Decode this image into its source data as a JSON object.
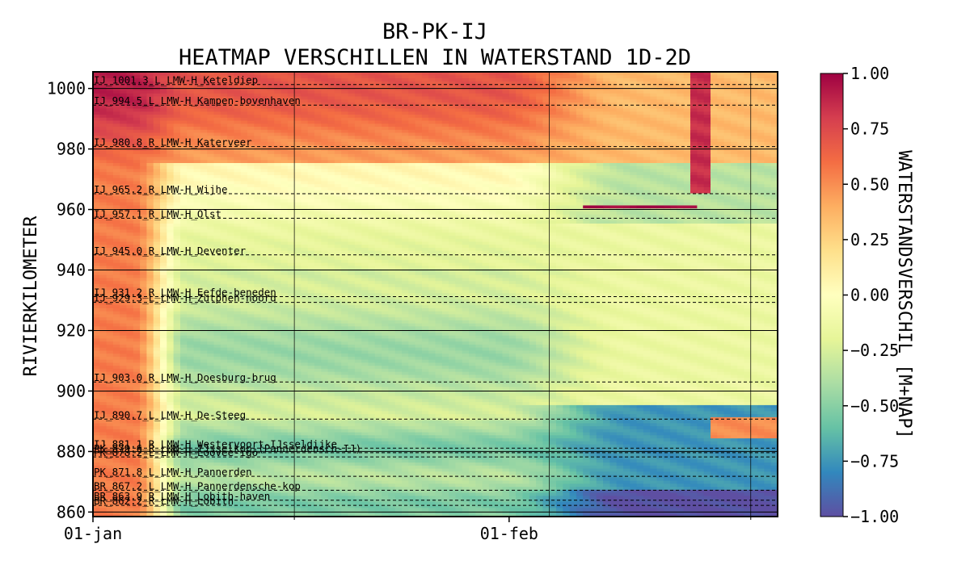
{
  "chart_data": {
    "type": "heatmap",
    "title_lines": [
      "BR-PK-IJ",
      "HEATMAP VERSCHILLEN IN WATERSTAND 1D-2D"
    ],
    "ylabel": "RIVIERKILOMETER",
    "colorbar_label": "WATERSTANDSVERSCHIL [M+NAP]",
    "x_ticks": [
      "01-jan",
      "01-feb"
    ],
    "xlim_days": [
      0,
      51
    ],
    "y_ticks": [
      860,
      880,
      900,
      920,
      940,
      960,
      980,
      1000
    ],
    "ylim": [
      858.5,
      1005.5
    ],
    "colorbar_range": [
      -1.0,
      1.0
    ],
    "colorbar_ticks": [
      "1.00",
      "0.75",
      "0.50",
      "0.25",
      "0.00",
      "−0.25",
      "−0.50",
      "−0.75",
      "−1.00"
    ],
    "colormap": "Spectral_r",
    "grid": true,
    "stations": [
      {
        "km": 1001.3,
        "label": "IJ_1001.3_L_LMW-H_Keteldiep"
      },
      {
        "km": 994.5,
        "label": "IJ_994.5_L_LMW-H_Kampen-bovenhaven"
      },
      {
        "km": 980.8,
        "label": "IJ_980.8_R_LMW-H_Katerveer"
      },
      {
        "km": 965.2,
        "label": "IJ_965.2_R_LMW-H_Wijhe"
      },
      {
        "km": 957.1,
        "label": "IJ_957.1_R_LMW-H_Olst"
      },
      {
        "km": 945.0,
        "label": "IJ_945.0_R_LMW-H_Deventer"
      },
      {
        "km": 931.2,
        "label": "IJ_931.2_R_LMW-H_Eefde-beneden"
      },
      {
        "km": 929.3,
        "label": "IJ_929.3_L_LMW-H_Zutphen-noord"
      },
      {
        "km": 903.0,
        "label": "IJ_903.0_R_LMW-H_Doesburg-brug"
      },
      {
        "km": 890.7,
        "label": "IJ_890.7_L_LMW-H_De-Steeg"
      },
      {
        "km": 881.1,
        "label": "IJ_881.1_R_LMW-H_Westervoort-IJsseldijke"
      },
      {
        "km": 879.6,
        "label": "PK_879.6_R_LMW-H_IJsselkop-(Pannerdensch-IJ)"
      },
      {
        "km": 878.2,
        "label": "PK_878.2_L_LMW-H_Loovee-igo"
      },
      {
        "km": 871.8,
        "label": "PK_871.8_L_LMW-H_Pannerden"
      },
      {
        "km": 867.2,
        "label": "BR_867.2_L_LMW-H_Pannerdensche-kop"
      },
      {
        "km": 863.9,
        "label": "BR_863.9_R_LMW-H_Lobith-haven"
      },
      {
        "km": 862.2,
        "label": "BR_862.2_R_LMW-H_Lobith"
      }
    ]
  }
}
